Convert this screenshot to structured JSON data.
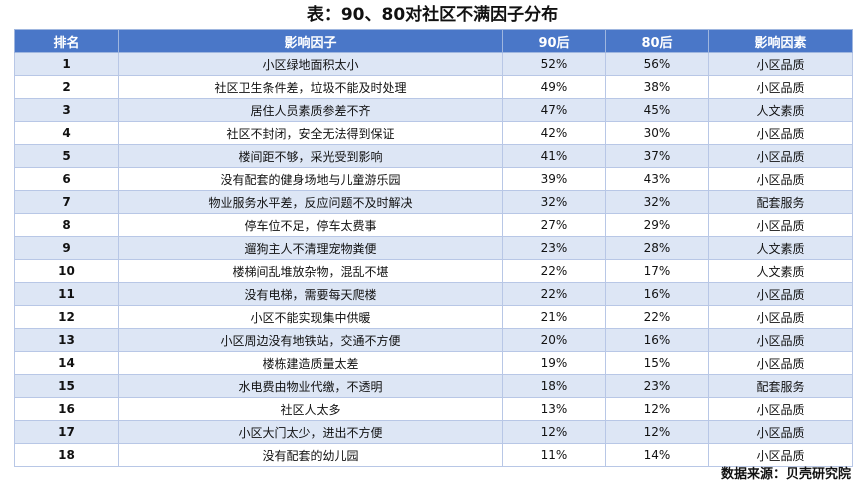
{
  "title": "表：90、80对社区不满因子分布",
  "chart_data": {
    "type": "table",
    "columns": [
      "排名",
      "影响因子",
      "90后",
      "80后",
      "影响因素"
    ],
    "rows": [
      [
        "1",
        "小区绿地面积太小",
        "52%",
        "56%",
        "小区品质"
      ],
      [
        "2",
        "社区卫生条件差，垃圾不能及时处理",
        "49%",
        "38%",
        "小区品质"
      ],
      [
        "3",
        "居住人员素质参差不齐",
        "47%",
        "45%",
        "人文素质"
      ],
      [
        "4",
        "社区不封闭，安全无法得到保证",
        "42%",
        "30%",
        "小区品质"
      ],
      [
        "5",
        "楼间距不够，采光受到影响",
        "41%",
        "37%",
        "小区品质"
      ],
      [
        "6",
        "没有配套的健身场地与儿童游乐园",
        "39%",
        "43%",
        "小区品质"
      ],
      [
        "7",
        "物业服务水平差，反应问题不及时解决",
        "32%",
        "32%",
        "配套服务"
      ],
      [
        "8",
        "停车位不足，停车太费事",
        "27%",
        "29%",
        "小区品质"
      ],
      [
        "9",
        "遛狗主人不清理宠物粪便",
        "23%",
        "28%",
        "人文素质"
      ],
      [
        "10",
        "楼梯间乱堆放杂物，混乱不堪",
        "22%",
        "17%",
        "人文素质"
      ],
      [
        "11",
        "没有电梯，需要每天爬楼",
        "22%",
        "16%",
        "小区品质"
      ],
      [
        "12",
        "小区不能实现集中供暖",
        "21%",
        "22%",
        "小区品质"
      ],
      [
        "13",
        "小区周边没有地铁站，交通不方便",
        "20%",
        "16%",
        "小区品质"
      ],
      [
        "14",
        "楼栋建造质量太差",
        "19%",
        "15%",
        "小区品质"
      ],
      [
        "15",
        "水电费由物业代缴，不透明",
        "18%",
        "23%",
        "配套服务"
      ],
      [
        "16",
        "社区人太多",
        "13%",
        "12%",
        "小区品质"
      ],
      [
        "17",
        "小区大门太少，进出不方便",
        "12%",
        "12%",
        "小区品质"
      ],
      [
        "18",
        "没有配套的幼儿园",
        "11%",
        "14%",
        "小区品质"
      ]
    ]
  },
  "source": "数据来源：贝壳研究院",
  "colors": {
    "header_bg": "#4a77c8",
    "header_text": "#ffffff",
    "row_band": "#dde6f5",
    "row_plain": "#ffffff",
    "border": "#b8c7e6"
  }
}
